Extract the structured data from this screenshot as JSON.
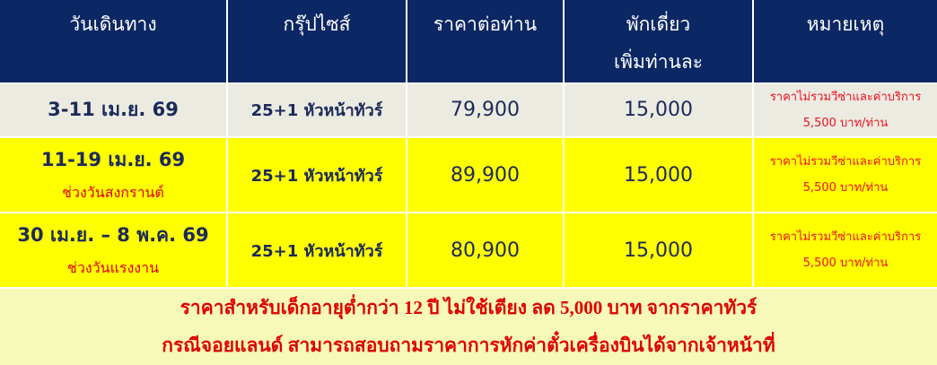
{
  "header": [
    "วันเดินทาง",
    "กรุ๊ปไซส์",
    "ราคาต่อท่าน",
    "พักเดี่ยว",
    "หมายเหตุ"
  ],
  "header_line2": "เพิ่มท่านละ",
  "rows": [
    {
      "date": "3-11 เม.ย. 69",
      "sub": "",
      "group": "25+1 หัวหน้าทัวร์",
      "price": "79,900",
      "single": "15,000",
      "note1": "ราคาไม่รวมวีซ่าและค่าบริการ",
      "note2": "5,500 บาท/ท่าน"
    },
    {
      "date": "11-19 เม.ย. 69",
      "sub": "ช่วงวันสงกรานต์",
      "group": "25+1 หัวหน้าทัวร์",
      "price": "89,900",
      "single": "15,000",
      "note1": "ราคาไม่รวมวีซ่าและค่าบริการ",
      "note2": "5,500 บาท/ท่าน"
    },
    {
      "date": "30 เม.ย. – 8 พ.ค. 69",
      "sub": "ช่วงวันแรงงาน",
      "group": "25+1 หัวหน้าทัวร์",
      "price": "80,900",
      "single": "15,000",
      "note1": "ราคาไม่รวมวีซ่าและค่าบริการ",
      "note2": "5,500 บาท/ท่าน"
    }
  ],
  "footer": [
    "ราคาสำหรับเด็กอายุต่ำกว่า 12 ปี ไม่ใช้เตียง ลด 5,000 บาท จากราคาทัวร์",
    "กรณีจอยแลนด์ สามารถสอบถามราคาการหักค่าตั๋วเครื่องบินได้จากเจ้าหน้าที่"
  ],
  "colors": {
    "header_bg": "#0b2764",
    "row1_bg": "#ecebe2",
    "row_highlight": "#ffff00",
    "footer_bg": "#f6f9b8",
    "note_red": "#f0101e"
  }
}
